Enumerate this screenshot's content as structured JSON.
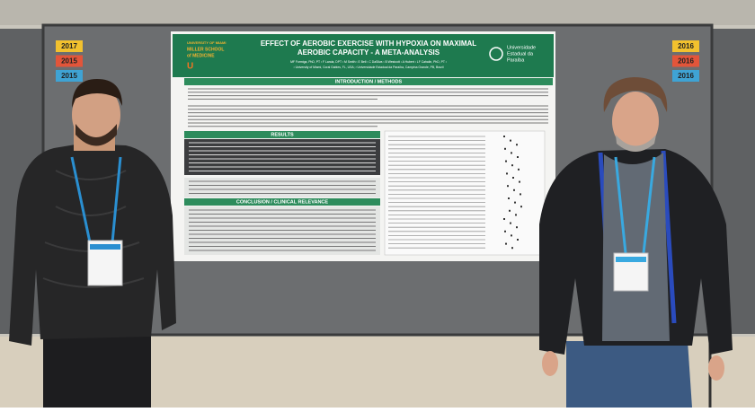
{
  "poster": {
    "title_line1": "EFFECT OF AEROBIC EXERCISE WITH HYPOXIA ON MAXIMAL",
    "title_line2": "AEROBIC CAPACITY - A META-ANALYSIS",
    "authors": "MF Formiga, PhD, PT ¹ F Landa, DPT ¹ M Smith ¹ E Bell ¹ C DaSilva ¹ B Westcott ¹ A Hubert ¹ LF Cahalin, PhD, PT ¹",
    "affiliations": "¹ University of Miami, Coral Gables, FL, USA; ² Universidade Estadual da Paraíba, Campina Grande, PB, Brazil",
    "logo_left": [
      "UNIVERSITY OF MIAMI",
      "MILLER SCHOOL",
      "of MEDICINE"
    ],
    "logo_right": [
      "Universidade",
      "Estadual da",
      "Paraíba"
    ],
    "section_intro": "INTRODUCTION / METHODS",
    "section_results": "RESULTS",
    "section_conclusion": "CONCLUSION / CLINICAL RELEVANCE"
  },
  "year_tags_left": [
    "2017",
    "2015",
    "2015"
  ],
  "year_tags_right": [
    "2016",
    "2016",
    "2016"
  ]
}
